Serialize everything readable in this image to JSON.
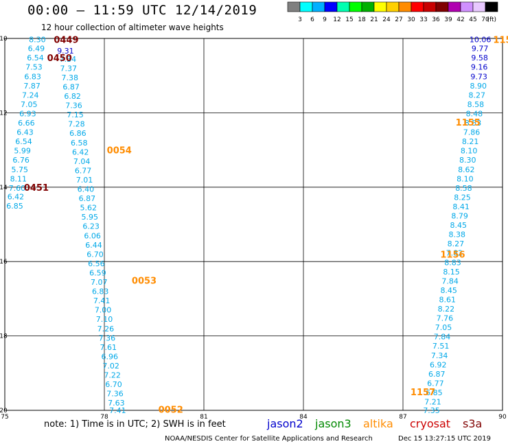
{
  "header": {
    "title": "00:00 – 11:59 UTC 12/14/2019",
    "subtitle": "12 hour collection of altimeter wave heights"
  },
  "colorbar": {
    "colors": [
      "#808080",
      "#00ffff",
      "#00b0ff",
      "#0000ff",
      "#00ffb0",
      "#00ff00",
      "#00b000",
      "#ffff00",
      "#ffd000",
      "#ff8c00",
      "#ff0000",
      "#c80000",
      "#800000",
      "#b000b0",
      "#d090ff",
      "#e8c8ff",
      "#000000"
    ],
    "labels": [
      "3",
      "6",
      "9",
      "12",
      "15",
      "18",
      "21",
      "24",
      "27",
      "30",
      "33",
      "36",
      "39",
      "42",
      "45",
      "70"
    ],
    "unit": "(ft)"
  },
  "footer": {
    "note": "note: 1) Time is in UTC; 2) SWH is in feet",
    "credit": "NOAA/NESDIS Center for Satellite Applications and Research",
    "timestamp": "Dec 15 13:27:15 UTC 2019"
  },
  "satellites": [
    {
      "name": "jason2",
      "color": "#0000cc"
    },
    {
      "name": "jason3",
      "color": "#008800"
    },
    {
      "name": "altika",
      "color": "#ff8c00"
    },
    {
      "name": "cryosat",
      "color": "#cc0000"
    },
    {
      "name": "s3a",
      "color": "#800000"
    }
  ],
  "chart_data": {
    "type": "scatter",
    "xlim": [
      75,
      90
    ],
    "ylim": [
      10,
      20
    ],
    "y_inverted": true,
    "xticks": [
      {
        "value": 75,
        "label": "75"
      },
      {
        "value": 78,
        "label": "78"
      },
      {
        "value": 81,
        "label": "81"
      },
      {
        "value": 84,
        "label": "84"
      },
      {
        "value": 87,
        "label": "87"
      },
      {
        "value": 90,
        "label": "90"
      }
    ],
    "yticks": [
      {
        "value": 10,
        "label": "10"
      },
      {
        "value": 12,
        "label": "12"
      },
      {
        "value": 14,
        "label": "14"
      },
      {
        "value": 16,
        "label": "16"
      },
      {
        "value": 18,
        "label": "18"
      },
      {
        "value": 20,
        "label": "20"
      }
    ],
    "grid": true,
    "track_labels": [
      {
        "text": "0449",
        "x": 76.85,
        "y": 10.03,
        "color": "#800000"
      },
      {
        "text": "0450",
        "x": 76.65,
        "y": 10.52,
        "color": "#800000"
      },
      {
        "text": "0451",
        "x": 75.95,
        "y": 14.0,
        "color": "#800000"
      },
      {
        "text": "0054",
        "x": 78.45,
        "y": 13.0,
        "color": "#ff8c00"
      },
      {
        "text": "0053",
        "x": 79.2,
        "y": 16.5,
        "color": "#ff8c00"
      },
      {
        "text": "0052",
        "x": 80.0,
        "y": 19.97,
        "color": "#ff8c00"
      },
      {
        "text": "1155",
        "x": 88.96,
        "y": 12.25,
        "color": "#ff8c00"
      },
      {
        "text": "1156",
        "x": 88.5,
        "y": 15.8,
        "color": "#ff8c00"
      },
      {
        "text": "1157",
        "x": 87.6,
        "y": 19.5,
        "color": "#ff8c00"
      },
      {
        "text": "115",
        "x": 90.0,
        "y": 10.03,
        "color": "#ff8c00"
      }
    ],
    "series": [
      {
        "name": "s3a",
        "color": "#0000cc",
        "points": [
          {
            "x": 76.83,
            "y": 10.33,
            "v": "9.31"
          },
          {
            "x": 89.33,
            "y": 10.03,
            "v": "10.06"
          },
          {
            "x": 89.32,
            "y": 10.27,
            "v": "9.77"
          },
          {
            "x": 89.31,
            "y": 10.52,
            "v": "9.58"
          },
          {
            "x": 89.3,
            "y": 10.77,
            "v": "9.16"
          },
          {
            "x": 89.29,
            "y": 11.02,
            "v": "9.73"
          }
        ]
      },
      {
        "name": "altika",
        "color": "#00a8e8",
        "points": [
          {
            "x": 75.98,
            "y": 10.03,
            "v": "8.30"
          },
          {
            "x": 75.95,
            "y": 10.27,
            "v": "6.49"
          },
          {
            "x": 75.92,
            "y": 10.52,
            "v": "6.54"
          },
          {
            "x": 75.88,
            "y": 10.77,
            "v": "7.53"
          },
          {
            "x": 75.84,
            "y": 11.02,
            "v": "6.83"
          },
          {
            "x": 75.82,
            "y": 11.27,
            "v": "7.87"
          },
          {
            "x": 75.77,
            "y": 11.52,
            "v": "7.24"
          },
          {
            "x": 75.73,
            "y": 11.77,
            "v": "7.05"
          },
          {
            "x": 75.69,
            "y": 12.02,
            "v": "6.93"
          },
          {
            "x": 75.65,
            "y": 12.27,
            "v": "6.66"
          },
          {
            "x": 75.61,
            "y": 12.52,
            "v": "6.43"
          },
          {
            "x": 75.57,
            "y": 12.77,
            "v": "6.54"
          },
          {
            "x": 75.53,
            "y": 13.02,
            "v": "5.99"
          },
          {
            "x": 75.49,
            "y": 13.27,
            "v": "6.76"
          },
          {
            "x": 75.45,
            "y": 13.52,
            "v": "5.75"
          },
          {
            "x": 75.41,
            "y": 13.77,
            "v": "8.11"
          },
          {
            "x": 75.37,
            "y": 14.02,
            "v": "7.60"
          },
          {
            "x": 75.33,
            "y": 14.25,
            "v": "6.42"
          },
          {
            "x": 75.3,
            "y": 14.5,
            "v": "6.85"
          },
          {
            "x": 76.9,
            "y": 10.55,
            "v": "7.34"
          },
          {
            "x": 76.92,
            "y": 10.8,
            "v": "7.37"
          },
          {
            "x": 76.96,
            "y": 11.05,
            "v": "7.38"
          },
          {
            "x": 77.0,
            "y": 11.3,
            "v": "6.87"
          },
          {
            "x": 77.04,
            "y": 11.55,
            "v": "6.82"
          },
          {
            "x": 77.08,
            "y": 11.8,
            "v": "7.36"
          },
          {
            "x": 77.12,
            "y": 12.05,
            "v": "7.15"
          },
          {
            "x": 77.16,
            "y": 12.3,
            "v": "7.28"
          },
          {
            "x": 77.2,
            "y": 12.55,
            "v": "6.86"
          },
          {
            "x": 77.24,
            "y": 12.8,
            "v": "6.58"
          },
          {
            "x": 77.28,
            "y": 13.05,
            "v": "6.42"
          },
          {
            "x": 77.32,
            "y": 13.3,
            "v": "7.04"
          },
          {
            "x": 77.36,
            "y": 13.55,
            "v": "6.77"
          },
          {
            "x": 77.4,
            "y": 13.8,
            "v": "7.01"
          },
          {
            "x": 77.44,
            "y": 14.05,
            "v": "6.40"
          },
          {
            "x": 77.48,
            "y": 14.3,
            "v": "6.87"
          },
          {
            "x": 77.52,
            "y": 14.55,
            "v": "5.62"
          },
          {
            "x": 77.56,
            "y": 14.8,
            "v": "5.95"
          },
          {
            "x": 77.6,
            "y": 15.05,
            "v": "6.23"
          },
          {
            "x": 77.64,
            "y": 15.3,
            "v": "6.06"
          },
          {
            "x": 77.68,
            "y": 15.55,
            "v": "6.44"
          },
          {
            "x": 77.72,
            "y": 15.8,
            "v": "6.70"
          },
          {
            "x": 77.76,
            "y": 16.05,
            "v": "6.56"
          },
          {
            "x": 77.8,
            "y": 16.3,
            "v": "6.59"
          },
          {
            "x": 77.84,
            "y": 16.55,
            "v": "7.07"
          },
          {
            "x": 77.88,
            "y": 16.8,
            "v": "6.83"
          },
          {
            "x": 77.92,
            "y": 17.05,
            "v": "7.41"
          },
          {
            "x": 77.96,
            "y": 17.3,
            "v": "7.00"
          },
          {
            "x": 78.0,
            "y": 17.55,
            "v": "7.10"
          },
          {
            "x": 78.04,
            "y": 17.8,
            "v": "7.26"
          },
          {
            "x": 78.08,
            "y": 18.05,
            "v": "7.36"
          },
          {
            "x": 78.12,
            "y": 18.3,
            "v": "7.61"
          },
          {
            "x": 78.16,
            "y": 18.55,
            "v": "6.96"
          },
          {
            "x": 78.2,
            "y": 18.8,
            "v": "7.02"
          },
          {
            "x": 78.24,
            "y": 19.05,
            "v": "7.22"
          },
          {
            "x": 78.28,
            "y": 19.3,
            "v": "6.70"
          },
          {
            "x": 78.32,
            "y": 19.55,
            "v": "7.36"
          },
          {
            "x": 78.36,
            "y": 19.8,
            "v": "7.63"
          },
          {
            "x": 78.4,
            "y": 20.0,
            "v": "7.41"
          },
          {
            "x": 89.27,
            "y": 11.27,
            "v": "8.90"
          },
          {
            "x": 89.23,
            "y": 11.52,
            "v": "8.27"
          },
          {
            "x": 89.19,
            "y": 11.77,
            "v": "8.58"
          },
          {
            "x": 89.15,
            "y": 12.02,
            "v": "8.48"
          },
          {
            "x": 89.11,
            "y": 12.27,
            "v": "8.53"
          },
          {
            "x": 89.07,
            "y": 12.52,
            "v": "7.86"
          },
          {
            "x": 89.03,
            "y": 12.77,
            "v": "8.21"
          },
          {
            "x": 88.99,
            "y": 13.02,
            "v": "8.10"
          },
          {
            "x": 88.95,
            "y": 13.27,
            "v": "8.30"
          },
          {
            "x": 88.91,
            "y": 13.52,
            "v": "8.62"
          },
          {
            "x": 88.87,
            "y": 13.77,
            "v": "8.10"
          },
          {
            "x": 88.83,
            "y": 14.02,
            "v": "8.58"
          },
          {
            "x": 88.79,
            "y": 14.27,
            "v": "8.25"
          },
          {
            "x": 88.75,
            "y": 14.52,
            "v": "8.41"
          },
          {
            "x": 88.71,
            "y": 14.77,
            "v": "8.79"
          },
          {
            "x": 88.67,
            "y": 15.02,
            "v": "8.45"
          },
          {
            "x": 88.63,
            "y": 15.27,
            "v": "8.38"
          },
          {
            "x": 88.59,
            "y": 15.52,
            "v": "8.27"
          },
          {
            "x": 88.55,
            "y": 15.77,
            "v": "7.82"
          },
          {
            "x": 88.5,
            "y": 16.02,
            "v": "8.83"
          },
          {
            "x": 88.46,
            "y": 16.27,
            "v": "8.15"
          },
          {
            "x": 88.42,
            "y": 16.52,
            "v": "7.84"
          },
          {
            "x": 88.38,
            "y": 16.77,
            "v": "8.45"
          },
          {
            "x": 88.34,
            "y": 17.02,
            "v": "8.61"
          },
          {
            "x": 88.3,
            "y": 17.27,
            "v": "8.22"
          },
          {
            "x": 88.26,
            "y": 17.52,
            "v": "7.76"
          },
          {
            "x": 88.22,
            "y": 17.77,
            "v": "7.05"
          },
          {
            "x": 88.18,
            "y": 18.02,
            "v": "7.84"
          },
          {
            "x": 88.14,
            "y": 18.27,
            "v": "7.51"
          },
          {
            "x": 88.1,
            "y": 18.52,
            "v": "7.34"
          },
          {
            "x": 88.06,
            "y": 18.77,
            "v": "6.92"
          },
          {
            "x": 88.02,
            "y": 19.02,
            "v": "6.87"
          },
          {
            "x": 87.98,
            "y": 19.27,
            "v": "6.77"
          },
          {
            "x": 87.94,
            "y": 19.52,
            "v": "6.85"
          },
          {
            "x": 87.9,
            "y": 19.77,
            "v": "7.21"
          },
          {
            "x": 87.86,
            "y": 20.0,
            "v": "7.35"
          }
        ]
      }
    ]
  }
}
